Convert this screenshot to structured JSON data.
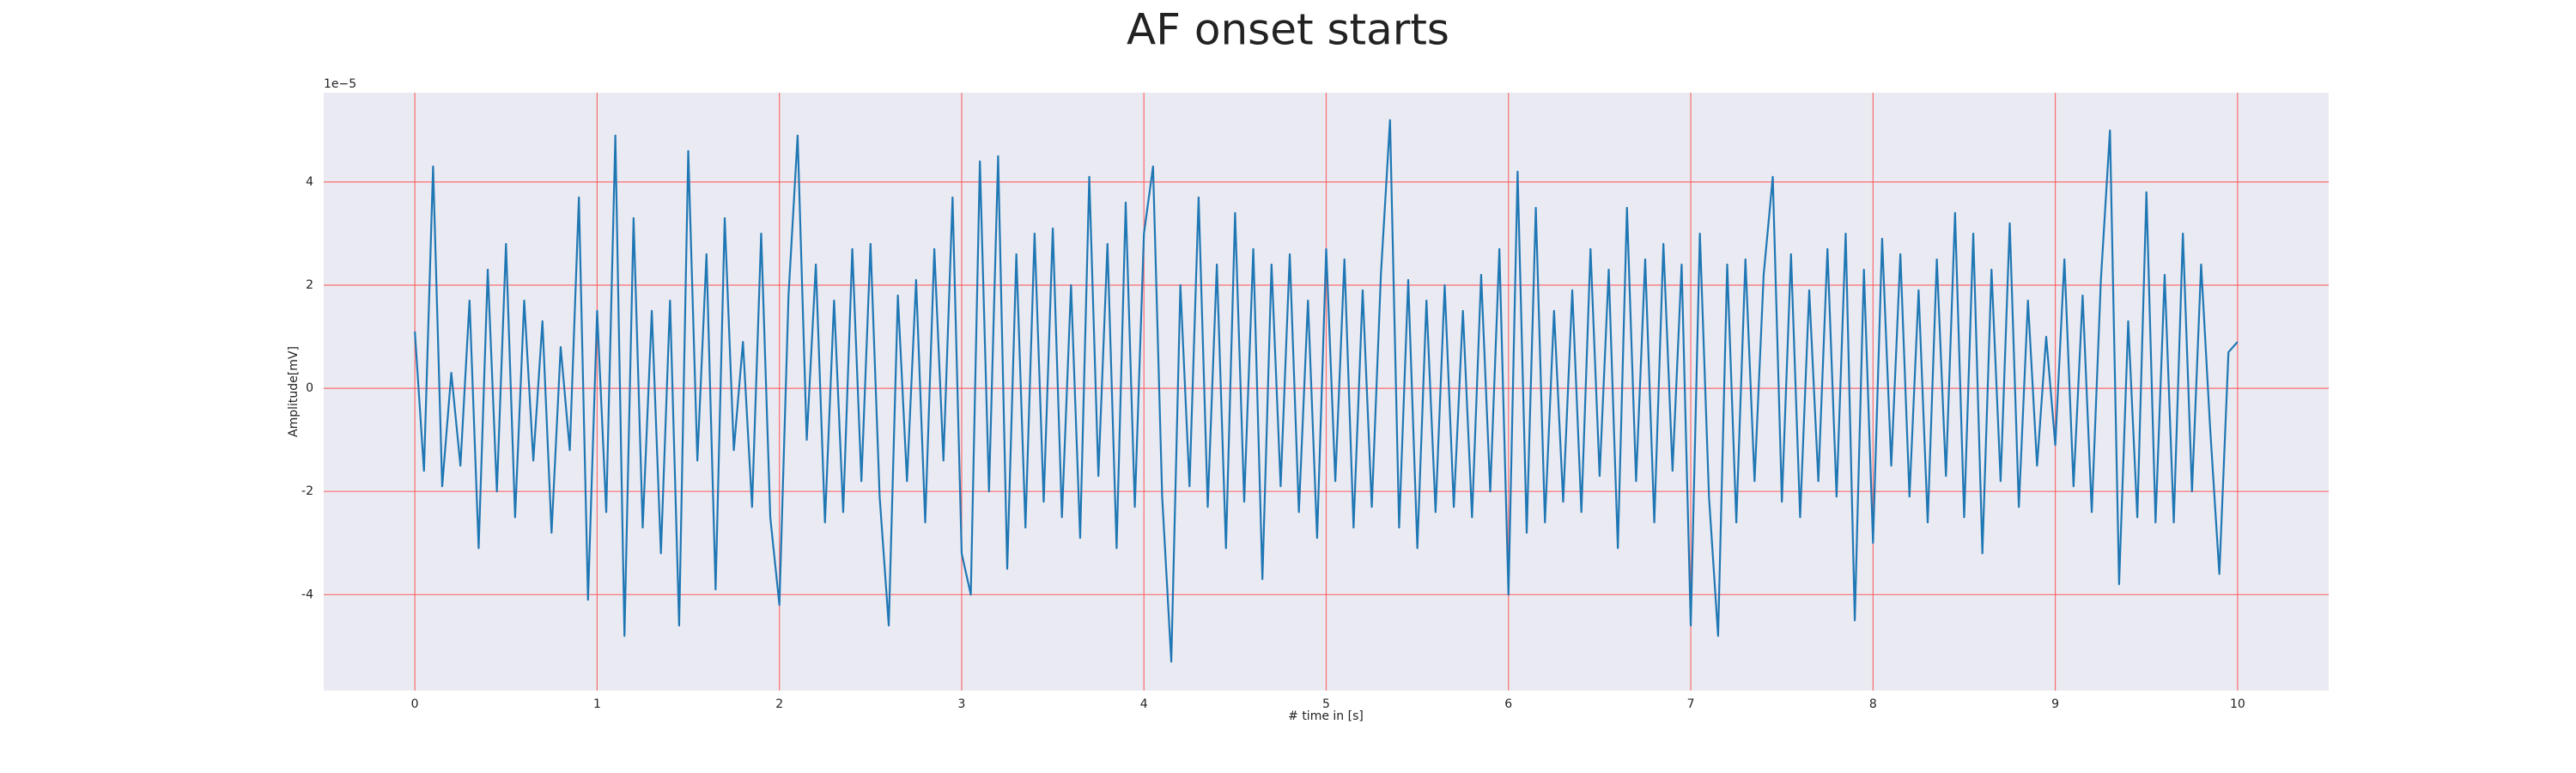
{
  "chart_data": {
    "type": "line",
    "title": "AF onset starts",
    "xlabel": "# time in [s]",
    "ylabel": "Amplitude[mV]",
    "y_offset_label": "1e−5",
    "xlim": [
      -0.5,
      10.5
    ],
    "ylim": [
      -5.86,
      5.73
    ],
    "xticks": [
      0,
      1,
      2,
      3,
      4,
      5,
      6,
      7,
      8,
      9,
      10
    ],
    "yticks": [
      -4,
      -2,
      0,
      2,
      4
    ],
    "grid": true,
    "grid_color": "#ff4d4d",
    "background": "#eaeaf2",
    "x": [
      0,
      0.05,
      0.1,
      0.15,
      0.2,
      0.25,
      0.3,
      0.35,
      0.4,
      0.45,
      0.5,
      0.55,
      0.6,
      0.65,
      0.7,
      0.75,
      0.8,
      0.85,
      0.9,
      0.95,
      1,
      1.05,
      1.1,
      1.15,
      1.2,
      1.25,
      1.3,
      1.35,
      1.4,
      1.45,
      1.5,
      1.55,
      1.6,
      1.65,
      1.7,
      1.75,
      1.8,
      1.85,
      1.9,
      1.95,
      2,
      2.05,
      2.1,
      2.15,
      2.2,
      2.25,
      2.3,
      2.35,
      2.4,
      2.45,
      2.5,
      2.55,
      2.6,
      2.65,
      2.7,
      2.75,
      2.8,
      2.85,
      2.9,
      2.95,
      3,
      3.05,
      3.1,
      3.15,
      3.2,
      3.25,
      3.3,
      3.35,
      3.4,
      3.45,
      3.5,
      3.55,
      3.6,
      3.65,
      3.7,
      3.75,
      3.8,
      3.85,
      3.9,
      3.95,
      4,
      4.05,
      4.1,
      4.15,
      4.2,
      4.25,
      4.3,
      4.35,
      4.4,
      4.45,
      4.5,
      4.55,
      4.6,
      4.65,
      4.7,
      4.75,
      4.8,
      4.85,
      4.9,
      4.95,
      5,
      5.05,
      5.1,
      5.15,
      5.2,
      5.25,
      5.3,
      5.35,
      5.4,
      5.45,
      5.5,
      5.55,
      5.6,
      5.65,
      5.7,
      5.75,
      5.8,
      5.85,
      5.9,
      5.95,
      6,
      6.05,
      6.1,
      6.15,
      6.2,
      6.25,
      6.3,
      6.35,
      6.4,
      6.45,
      6.5,
      6.55,
      6.6,
      6.65,
      6.7,
      6.75,
      6.8,
      6.85,
      6.9,
      6.95,
      7,
      7.05,
      7.1,
      7.15,
      7.2,
      7.25,
      7.3,
      7.35,
      7.4,
      7.45,
      7.5,
      7.55,
      7.6,
      7.65,
      7.7,
      7.75,
      7.8,
      7.85,
      7.9,
      7.95,
      8,
      8.05,
      8.1,
      8.15,
      8.2,
      8.25,
      8.3,
      8.35,
      8.4,
      8.45,
      8.5,
      8.55,
      8.6,
      8.65,
      8.7,
      8.75,
      8.8,
      8.85,
      8.9,
      8.95,
      9,
      9.05,
      9.1,
      9.15,
      9.2,
      9.25,
      9.3,
      9.35,
      9.4,
      9.45,
      9.5,
      9.55,
      9.6,
      9.65,
      9.7,
      9.75,
      9.8,
      9.85,
      9.9,
      9.95,
      10
    ],
    "series": [
      {
        "color": "#1f77b4",
        "values": [
          1.1,
          -1.6,
          4.3,
          -1.9,
          0.3,
          -1.5,
          1.7,
          -3.1,
          2.3,
          -2.0,
          2.8,
          -2.5,
          1.7,
          -1.4,
          1.3,
          -2.8,
          0.8,
          -1.2,
          3.7,
          -4.1,
          1.5,
          -2.4,
          4.9,
          -4.8,
          3.3,
          -2.7,
          1.5,
          -3.2,
          1.7,
          -4.6,
          4.6,
          -1.4,
          2.6,
          -3.9,
          3.3,
          -1.2,
          0.9,
          -2.3,
          3.0,
          -2.5,
          -4.2,
          1.8,
          4.9,
          -1.0,
          2.4,
          -2.6,
          1.7,
          -2.4,
          2.7,
          -1.8,
          2.8,
          -2.1,
          -4.6,
          1.8,
          -1.8,
          2.1,
          -2.6,
          2.7,
          -1.4,
          3.7,
          -3.2,
          -4.0,
          4.4,
          -2.0,
          4.5,
          -3.5,
          2.6,
          -2.7,
          3.0,
          -2.2,
          3.1,
          -2.5,
          2.0,
          -2.9,
          4.1,
          -1.7,
          2.8,
          -3.1,
          3.6,
          -2.3,
          3.0,
          4.3,
          -2.1,
          -5.3,
          2.0,
          -1.9,
          3.7,
          -2.3,
          2.4,
          -3.1,
          3.4,
          -2.2,
          2.7,
          -3.7,
          2.4,
          -1.9,
          2.6,
          -2.4,
          1.7,
          -2.9,
          2.7,
          -1.8,
          2.5,
          -2.7,
          1.9,
          -2.3,
          2.2,
          5.2,
          -2.7,
          2.1,
          -3.1,
          1.7,
          -2.4,
          2.0,
          -2.3,
          1.5,
          -2.5,
          2.2,
          -2.0,
          2.7,
          -4.0,
          4.2,
          -2.8,
          3.5,
          -2.6,
          1.5,
          -2.2,
          1.9,
          -2.4,
          2.7,
          -1.7,
          2.3,
          -3.1,
          3.5,
          -1.8,
          2.5,
          -2.6,
          2.8,
          -1.6,
          2.4,
          -4.6,
          3.0,
          -2.1,
          -4.8,
          2.4,
          -2.6,
          2.5,
          -1.8,
          2.2,
          4.1,
          -2.2,
          2.6,
          -2.5,
          1.9,
          -1.8,
          2.7,
          -2.1,
          3.0,
          -4.5,
          2.3,
          -3.0,
          2.9,
          -1.5,
          2.6,
          -2.1,
          1.9,
          -2.6,
          2.5,
          -1.7,
          3.4,
          -2.5,
          3.0,
          -3.2,
          2.3,
          -1.8,
          3.2,
          -2.3,
          1.7,
          -1.5,
          1.0,
          -1.1,
          2.5,
          -1.9,
          1.8,
          -2.4,
          2.1,
          5.0,
          -3.8,
          1.3,
          -2.5,
          3.8,
          -2.6,
          2.2,
          -2.6,
          3.0,
          -2.0,
          2.4,
          -0.8,
          -3.6,
          0.7,
          0.9
        ]
      }
    ]
  }
}
